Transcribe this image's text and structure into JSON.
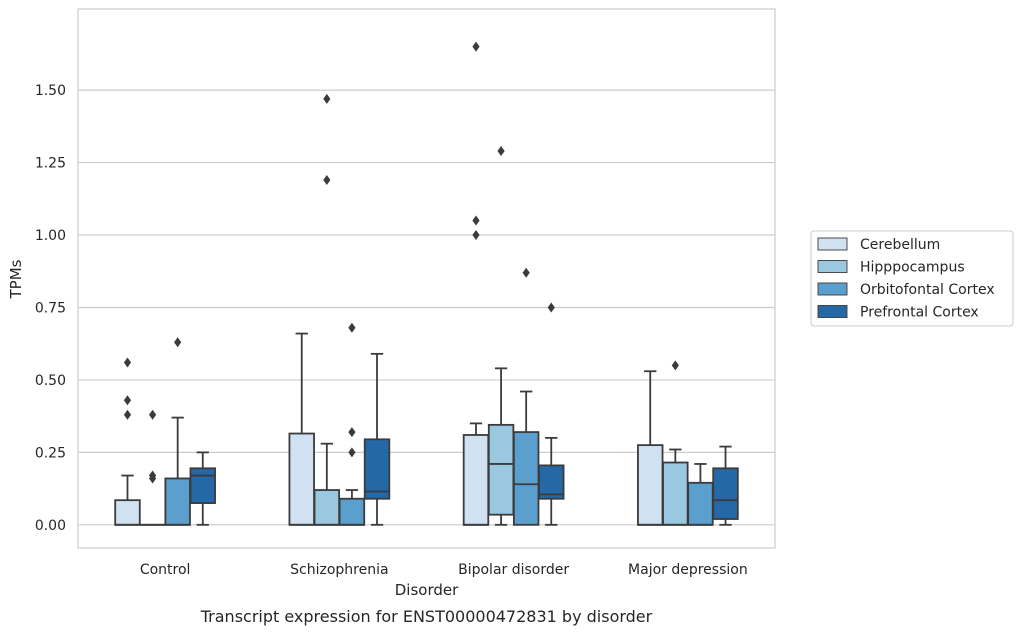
{
  "chart_data": {
    "type": "box",
    "title": "",
    "caption": "Transcript expression for ENST00000472831 by disorder",
    "xlabel": "Disorder",
    "ylabel": "TPMs",
    "categories": [
      "Control",
      "Schizophrenia",
      "Bipolar disorder",
      "Major depression"
    ],
    "ylim": [
      -0.08,
      1.78
    ],
    "yticks": [
      0.0,
      0.25,
      0.5,
      0.75,
      1.0,
      1.25,
      1.5
    ],
    "ytick_labels": [
      "0.00",
      "0.25",
      "0.50",
      "0.75",
      "1.00",
      "1.25",
      "1.50"
    ],
    "grid": true,
    "legend_position": "outside-right",
    "series": [
      {
        "name": "Cerebellum",
        "color": "#d0e1f2",
        "boxes": [
          {
            "min": 0.0,
            "q1": 0.0,
            "median": 0.0,
            "q3": 0.085,
            "max": 0.17,
            "outliers": [
              0.38,
              0.43,
              0.56
            ]
          },
          {
            "min": 0.0,
            "q1": 0.0,
            "median": 0.0,
            "q3": 0.315,
            "max": 0.66,
            "outliers": []
          },
          {
            "min": 0.0,
            "q1": 0.0,
            "median": 0.0,
            "q3": 0.31,
            "max": 0.35,
            "outliers": [
              1.0,
              1.05,
              1.65
            ]
          },
          {
            "min": 0.0,
            "q1": 0.0,
            "median": 0.0,
            "q3": 0.275,
            "max": 0.53,
            "outliers": []
          }
        ]
      },
      {
        "name": "Hipppocampus",
        "color": "#9ac8e0",
        "boxes": [
          {
            "min": 0.0,
            "q1": 0.0,
            "median": 0.0,
            "q3": 0.0,
            "max": 0.0,
            "outliers": [
              0.16,
              0.17,
              0.38
            ]
          },
          {
            "min": 0.0,
            "q1": 0.0,
            "median": 0.0,
            "q3": 0.12,
            "max": 0.28,
            "outliers": [
              1.19,
              1.47
            ]
          },
          {
            "min": 0.0,
            "q1": 0.035,
            "median": 0.21,
            "q3": 0.345,
            "max": 0.54,
            "outliers": [
              1.29
            ]
          },
          {
            "min": 0.0,
            "q1": 0.0,
            "median": 0.0,
            "q3": 0.215,
            "max": 0.26,
            "outliers": [
              0.55
            ]
          }
        ]
      },
      {
        "name": "Orbitofontal Cortex",
        "color": "#5a9fcd",
        "boxes": [
          {
            "min": 0.0,
            "q1": 0.0,
            "median": 0.0,
            "q3": 0.16,
            "max": 0.37,
            "outliers": [
              0.63
            ]
          },
          {
            "min": 0.0,
            "q1": 0.0,
            "median": 0.0,
            "q3": 0.09,
            "max": 0.12,
            "outliers": [
              0.25,
              0.32,
              0.68
            ]
          },
          {
            "min": 0.0,
            "q1": 0.0,
            "median": 0.14,
            "q3": 0.32,
            "max": 0.46,
            "outliers": [
              0.87
            ]
          },
          {
            "min": 0.0,
            "q1": 0.0,
            "median": 0.0,
            "q3": 0.145,
            "max": 0.21,
            "outliers": []
          }
        ]
      },
      {
        "name": "Prefrontal Cortex",
        "color": "#2468a8",
        "boxes": [
          {
            "min": 0.0,
            "q1": 0.075,
            "median": 0.17,
            "q3": 0.195,
            "max": 0.25,
            "outliers": []
          },
          {
            "min": 0.0,
            "q1": 0.09,
            "median": 0.115,
            "q3": 0.295,
            "max": 0.59,
            "outliers": []
          },
          {
            "min": 0.0,
            "q1": 0.09,
            "median": 0.105,
            "q3": 0.205,
            "max": 0.3,
            "outliers": [
              0.75
            ]
          },
          {
            "min": 0.0,
            "q1": 0.02,
            "median": 0.085,
            "q3": 0.195,
            "max": 0.27,
            "outliers": []
          }
        ]
      }
    ]
  }
}
